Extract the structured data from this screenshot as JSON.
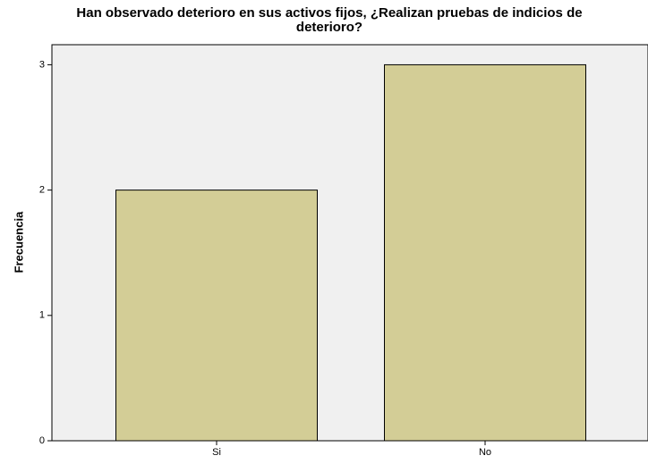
{
  "chart_data": {
    "type": "bar",
    "title": [
      "Han observado deterioro en sus activos fijos, ¿Realizan pruebas de indicios de",
      "deterioro?"
    ],
    "y_label": "Frecuencia",
    "categories": [
      "Si",
      "No"
    ],
    "values": [
      2,
      3
    ],
    "color": "#d3cd96",
    "ylim": [
      0,
      3.16
    ],
    "yticks": [
      0,
      1,
      2,
      3
    ],
    "grid": false
  }
}
